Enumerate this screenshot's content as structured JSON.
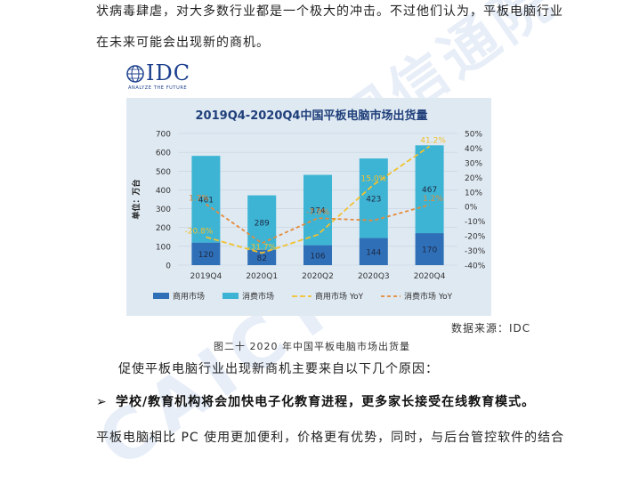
{
  "text": {
    "para1_line1": "状病毒肆虐，对大多数行业都是一个极大的冲击。不过他们认为，平板电脑行业",
    "para1_line2": "在未来可能会出现新的商机。",
    "source": "数据来源：IDC",
    "figure_caption": "图二十 2020 年中国平板电脑市场出货量",
    "para2": "促使平板电脑行业出现新商机主要来自以下几个原因：",
    "bullet_mark": "➢",
    "bullet": "学校/教育机构将会加快电子化教育进程，更多家长接受在线教育模式。",
    "para3": "平板电脑相比 PC 使用更加便利，价格更有优势，同时，与后台管控软件的结合",
    "watermark_a": "中国信通院",
    "watermark_b": "CAICT"
  },
  "logo": {
    "name": "IDC",
    "tagline": "ANALYZE THE FUTURE"
  },
  "colors": {
    "commercial": "#2f6fb7",
    "consumer": "#3db4d4",
    "commercial_yoy": "#f2c12e",
    "consumer_yoy": "#e58a3a",
    "plot_bg": "#dfe9f2",
    "title": "#1f3f7a"
  },
  "chart_data": {
    "type": "bar",
    "stacked": true,
    "title": "2019Q4-2020Q4中国平板电脑市场出货量",
    "ylabel": "单位：万台",
    "categories": [
      "2019Q4",
      "2020Q1",
      "2020Q2",
      "2020Q3",
      "2020Q4"
    ],
    "ylim": [
      0,
      700
    ],
    "yticks": [
      0,
      100,
      200,
      300,
      400,
      500,
      600,
      700
    ],
    "y2lim": [
      -40,
      50
    ],
    "y2ticks": [
      -40,
      -30,
      -20,
      -10,
      0,
      10,
      20,
      30,
      40,
      50
    ],
    "series": [
      {
        "name": "商用市场",
        "values": [
          120,
          82,
          106,
          144,
          170
        ]
      },
      {
        "name": "消费市场",
        "values": [
          461,
          289,
          374,
          423,
          467
        ]
      }
    ],
    "lines": [
      {
        "name": "商用市场 YoY",
        "values": [
          -20.8,
          -31.7,
          -19.2,
          15.0,
          41.2
        ],
        "labels": [
          "-20.8%",
          "-31.7%",
          "",
          "15.0%",
          "41.2%"
        ]
      },
      {
        "name": "消费市场 YoY",
        "values": [
          1.7,
          -25.0,
          -7.9,
          -9.5,
          1.2
        ],
        "labels": [
          "1.7%",
          "",
          "-7.9%",
          "",
          "1.2%"
        ]
      }
    ],
    "legend_position": "bottom",
    "grid": true
  }
}
